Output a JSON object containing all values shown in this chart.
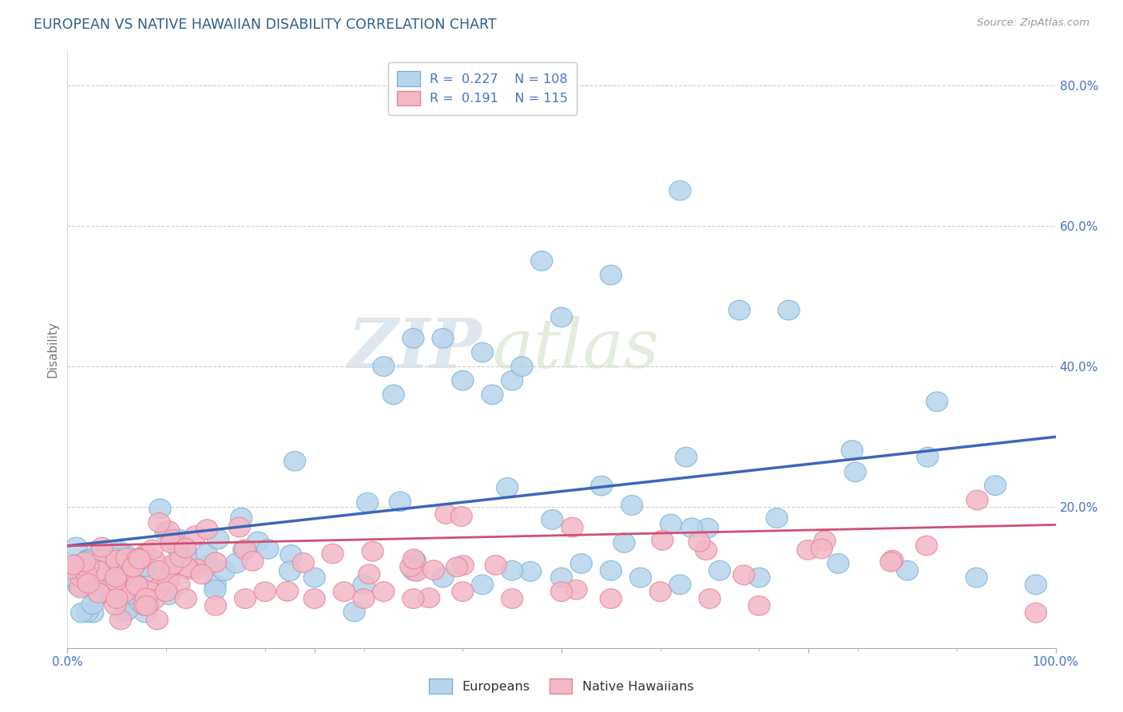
{
  "title": "EUROPEAN VS NATIVE HAWAIIAN DISABILITY CORRELATION CHART",
  "source": "Source: ZipAtlas.com",
  "ylabel": "Disability",
  "xlim": [
    0.0,
    1.0
  ],
  "ylim": [
    0.0,
    0.85
  ],
  "x_ticks": [
    0.0,
    0.25,
    0.5,
    0.75,
    1.0
  ],
  "x_tick_labels": [
    "0.0%",
    "",
    "",
    "",
    "100.0%"
  ],
  "y_ticks": [
    0.0,
    0.2,
    0.4,
    0.6,
    0.8
  ],
  "y_tick_labels": [
    "",
    "20.0%",
    "40.0%",
    "60.0%",
    "80.0%"
  ],
  "european_edge": "#7ab3d8",
  "european_face": "#b8d4ec",
  "native_edge": "#e8829a",
  "native_face": "#f2b8c6",
  "trend_european_color": "#3a67b8",
  "trend_native_color": "#d05070",
  "R_european": 0.227,
  "N_european": 108,
  "R_native": 0.191,
  "N_native": 115,
  "watermark_zip": "ZIP",
  "watermark_atlas": "atlas",
  "background_color": "#ffffff",
  "grid_color": "#cccccc",
  "title_color": "#2c5f8a",
  "tick_color": "#4472c4",
  "eu_trend_start": 0.145,
  "eu_trend_end": 0.3,
  "na_trend_start": 0.145,
  "na_trend_end": 0.175
}
